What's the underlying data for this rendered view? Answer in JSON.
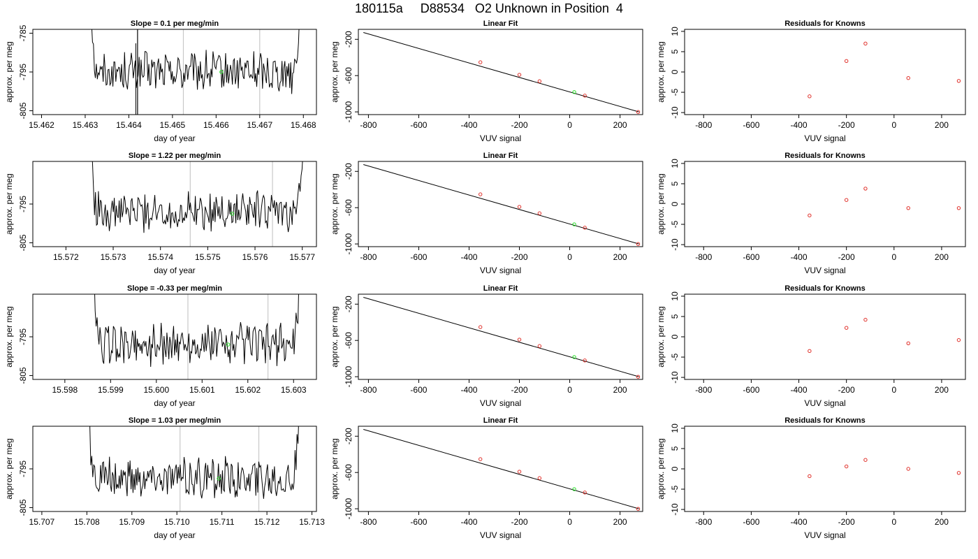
{
  "page_title": "180115a     D88534   O2 Unknown in Position  4",
  "labels": {
    "ylabel": "approx. per meg",
    "xlabel_time": "day of year",
    "xlabel_vuv": "VUV signal",
    "fit_title": "Linear Fit",
    "resid_title": "Residuals for Knowns"
  },
  "colors": {
    "known": "#e0302a",
    "unknown": "#22dd22",
    "line": "#000000",
    "guide": "#c8c8c8"
  },
  "chart_data": [
    {
      "type": "line",
      "slope_title": "Slope =  0.1  per meg/min",
      "xlim": [
        15.4618,
        15.4683
      ],
      "ylim": [
        -806,
        -784
      ],
      "xticks": [
        "15.462",
        "15.463",
        "15.464",
        "15.465",
        "15.466",
        "15.467",
        "15.468"
      ],
      "yticks": [
        "-785",
        "-795",
        "-805"
      ],
      "start": 15.4631,
      "end": 15.468,
      "vlines": [
        15.46525,
        15.467
      ],
      "unknown_point": [
        15.46612,
        -795.0
      ],
      "level": -795.0,
      "spike": 15.4642,
      "fit": {
        "type": "line",
        "xlim": [
          -840,
          290
        ],
        "ylim": [
          -1030,
          -90
        ],
        "xticks": [
          "-800",
          "-600",
          "-400",
          "-200",
          "0",
          "200"
        ],
        "yticks": [
          "-200",
          "-600",
          "-1000"
        ],
        "line_x": [
          -820,
          275
        ],
        "line_y": [
          -125,
          -1000
        ],
        "knowns": [
          [
            -355,
            -453
          ],
          [
            -200,
            -591
          ],
          [
            -120,
            -662
          ],
          [
            60,
            -821
          ],
          [
            272,
            -1001
          ]
        ],
        "unknown": [
          18,
          -782
        ]
      },
      "resid": {
        "type": "scatter",
        "xlim": [
          -880,
          300
        ],
        "ylim": [
          -10.5,
          10.5
        ],
        "xticks": [
          "-800",
          "-600",
          "-400",
          "-200",
          "0",
          "200"
        ],
        "yticks": [
          "10",
          "5",
          "0",
          "-5",
          "-10"
        ],
        "x": [
          -355,
          -200,
          -120,
          60,
          272
        ],
        "y": [
          -6,
          2.7,
          7,
          -1.5,
          -2.2
        ]
      }
    },
    {
      "type": "line",
      "slope_title": "Slope =  1.22  per meg/min",
      "xlim": [
        15.5713,
        15.5773
      ],
      "ylim": [
        -806,
        -784
      ],
      "xticks": [
        "15.572",
        "15.573",
        "15.574",
        "15.575",
        "15.576",
        "15.577"
      ],
      "yticks": [
        "-795",
        "-805"
      ],
      "start": 15.5725,
      "end": 15.5771,
      "vlines": [
        15.57463,
        15.57637
      ],
      "unknown_point": [
        15.57552,
        -797.5
      ],
      "level": -797.0,
      "spike": null,
      "fit": {
        "type": "line",
        "xlim": [
          -840,
          290
        ],
        "ylim": [
          -1030,
          -90
        ],
        "xticks": [
          "-800",
          "-600",
          "-400",
          "-200",
          "0",
          "200"
        ],
        "yticks": [
          "-200",
          "-600",
          "-1000"
        ],
        "line_x": [
          -820,
          275
        ],
        "line_y": [
          -125,
          -1000
        ],
        "knowns": [
          [
            -355,
            -453
          ],
          [
            -200,
            -591
          ],
          [
            -120,
            -662
          ],
          [
            60,
            -821
          ],
          [
            272,
            -1001
          ]
        ],
        "unknown": [
          18,
          -784
        ]
      },
      "resid": {
        "type": "scatter",
        "xlim": [
          -880,
          300
        ],
        "ylim": [
          -10.5,
          10.5
        ],
        "xticks": [
          "-800",
          "-600",
          "-400",
          "-200",
          "0",
          "200"
        ],
        "yticks": [
          "10",
          "5",
          "0",
          "-5",
          "-10"
        ],
        "x": [
          -355,
          -200,
          -120,
          60,
          272
        ],
        "y": [
          -2.8,
          1,
          3.8,
          -1,
          -1
        ]
      }
    },
    {
      "type": "line",
      "slope_title": "Slope =  -0.33  per meg/min",
      "xlim": [
        15.5973,
        15.6035
      ],
      "ylim": [
        -806,
        -784
      ],
      "xticks": [
        "15.598",
        "15.599",
        "15.600",
        "15.601",
        "15.602",
        "15.603"
      ],
      "yticks": [
        "-795",
        "-805"
      ],
      "start": 15.5986,
      "end": 15.6032,
      "vlines": [
        15.60069,
        15.60244
      ],
      "unknown_point": [
        15.60157,
        -797.0
      ],
      "level": -797.0,
      "spike": null,
      "fit": {
        "type": "line",
        "xlim": [
          -840,
          290
        ],
        "ylim": [
          -1030,
          -90
        ],
        "xticks": [
          "-800",
          "-600",
          "-400",
          "-200",
          "0",
          "200"
        ],
        "yticks": [
          "-200",
          "-600",
          "-1000"
        ],
        "line_x": [
          -820,
          275
        ],
        "line_y": [
          -125,
          -1000
        ],
        "knowns": [
          [
            -355,
            -453
          ],
          [
            -200,
            -591
          ],
          [
            -120,
            -662
          ],
          [
            60,
            -821
          ],
          [
            272,
            -1001
          ]
        ],
        "unknown": [
          18,
          -784
        ]
      },
      "resid": {
        "type": "scatter",
        "xlim": [
          -880,
          300
        ],
        "ylim": [
          -10.5,
          10.5
        ],
        "xticks": [
          "-800",
          "-600",
          "-400",
          "-200",
          "0",
          "200"
        ],
        "yticks": [
          "10",
          "5",
          "0",
          "-5",
          "-10"
        ],
        "x": [
          -355,
          -200,
          -120,
          60,
          272
        ],
        "y": [
          -3.5,
          2.2,
          4.2,
          -1.6,
          -0.8
        ]
      }
    },
    {
      "type": "line",
      "slope_title": "Slope =  1.03  per meg/min",
      "xlim": [
        15.7068,
        15.7131
      ],
      "ylim": [
        -806,
        -784
      ],
      "xticks": [
        "15.707",
        "15.708",
        "15.709",
        "15.710",
        "15.711",
        "15.712",
        "15.713"
      ],
      "yticks": [
        "-795",
        "-805"
      ],
      "start": 15.708,
      "end": 15.7128,
      "vlines": [
        15.71007,
        15.71182
      ],
      "unknown_point": [
        15.71093,
        -797.5
      ],
      "level": -797.5,
      "spike": null,
      "fit": {
        "type": "line",
        "xlim": [
          -840,
          290
        ],
        "ylim": [
          -1030,
          -90
        ],
        "xticks": [
          "-800",
          "-600",
          "-400",
          "-200",
          "0",
          "200"
        ],
        "yticks": [
          "-200",
          "-600",
          "-1000"
        ],
        "line_x": [
          -820,
          275
        ],
        "line_y": [
          -125,
          -1000
        ],
        "knowns": [
          [
            -355,
            -453
          ],
          [
            -200,
            -591
          ],
          [
            -120,
            -662
          ],
          [
            60,
            -821
          ],
          [
            272,
            -1001
          ]
        ],
        "unknown": [
          18,
          -784
        ]
      },
      "resid": {
        "type": "scatter",
        "xlim": [
          -880,
          300
        ],
        "ylim": [
          -10.5,
          10.5
        ],
        "xticks": [
          "-800",
          "-600",
          "-400",
          "-200",
          "0",
          "200"
        ],
        "yticks": [
          "10",
          "5",
          "0",
          "-5",
          "-10"
        ],
        "x": [
          -355,
          -200,
          -120,
          60,
          272
        ],
        "y": [
          -1.8,
          0.6,
          2.2,
          0,
          -1
        ]
      }
    }
  ]
}
